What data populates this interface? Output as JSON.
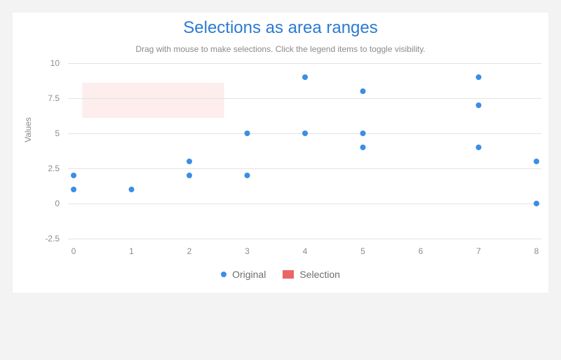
{
  "header": {
    "title": "Selections as area ranges",
    "subtitle": "Drag with mouse to make selections. Click the legend items to toggle visibility."
  },
  "legend": {
    "original_label": "Original",
    "selection_label": "Selection"
  },
  "colors": {
    "original": "#3a8ee6",
    "selection": "#ec6565",
    "selection_fill": "#fdeded",
    "grid": "#e3e3e3"
  },
  "chart_data": {
    "type": "scatter",
    "title": "Selections as area ranges",
    "subtitle": "Drag with mouse to make selections. Click the legend items to toggle visibility.",
    "xlabel": "",
    "ylabel": "Values",
    "xlim": [
      0,
      8
    ],
    "ylim": [
      -2.5,
      10
    ],
    "x_ticks": [
      "0",
      "1",
      "2",
      "3",
      "4",
      "5",
      "6",
      "7",
      "8"
    ],
    "y_ticks": [
      "10",
      "7.5",
      "5",
      "2.5",
      "0",
      "-2.5"
    ],
    "y_tick_values": [
      10,
      7.5,
      5,
      2.5,
      0,
      -2.5
    ],
    "grid": true,
    "legend_position": "bottom-center",
    "series": [
      {
        "name": "Original",
        "points": [
          [
            0,
            2
          ],
          [
            0,
            1
          ],
          [
            1,
            1
          ],
          [
            2,
            3
          ],
          [
            2,
            2
          ],
          [
            3,
            5
          ],
          [
            3,
            2
          ],
          [
            4,
            9
          ],
          [
            4,
            5
          ],
          [
            5,
            8
          ],
          [
            5,
            5
          ],
          [
            5,
            4
          ],
          [
            7,
            9
          ],
          [
            7,
            7
          ],
          [
            7,
            4
          ],
          [
            8,
            3
          ],
          [
            8,
            0
          ]
        ]
      }
    ],
    "selection_range": {
      "x": [
        0.15,
        2.6
      ],
      "y": [
        6.1,
        8.6
      ]
    }
  }
}
